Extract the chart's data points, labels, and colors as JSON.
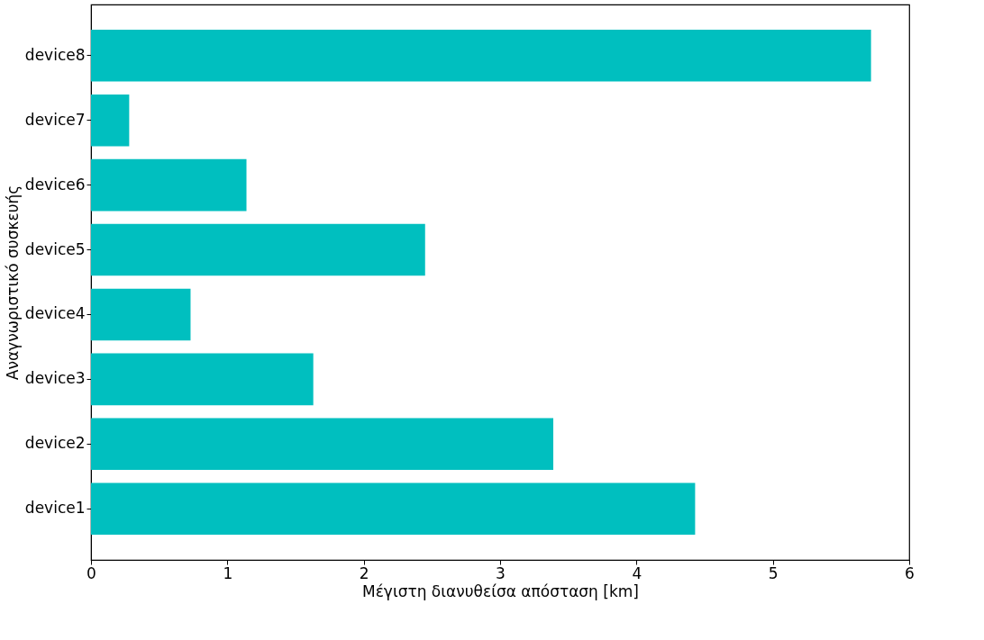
{
  "chart_data": {
    "type": "bar",
    "orientation": "horizontal",
    "xlabel": "Μέγιστη διανυθείσα απόσταση [km]",
    "ylabel": "Αναγνωριστικό συσκευής",
    "categories": [
      "device8",
      "device7",
      "device6",
      "device5",
      "device4",
      "device3",
      "device2",
      "device1"
    ],
    "values": [
      5.72,
      0.28,
      1.14,
      2.45,
      0.73,
      1.63,
      3.39,
      4.43
    ],
    "color": "#00bfbf",
    "xlim": [
      0,
      6
    ],
    "xticks": [
      0,
      1,
      2,
      3,
      4,
      5,
      6
    ],
    "grid": false
  }
}
